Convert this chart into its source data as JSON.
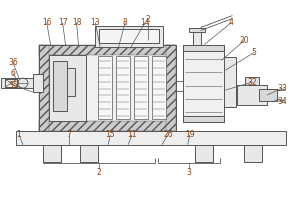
{
  "bg_color": "#ffffff",
  "line_color": "#555555",
  "label_color": "#8B4513",
  "label_fontsize": 5.5,
  "line_width": 0.7,
  "thin_lw": 0.4,
  "hatch_lw": 0.3
}
